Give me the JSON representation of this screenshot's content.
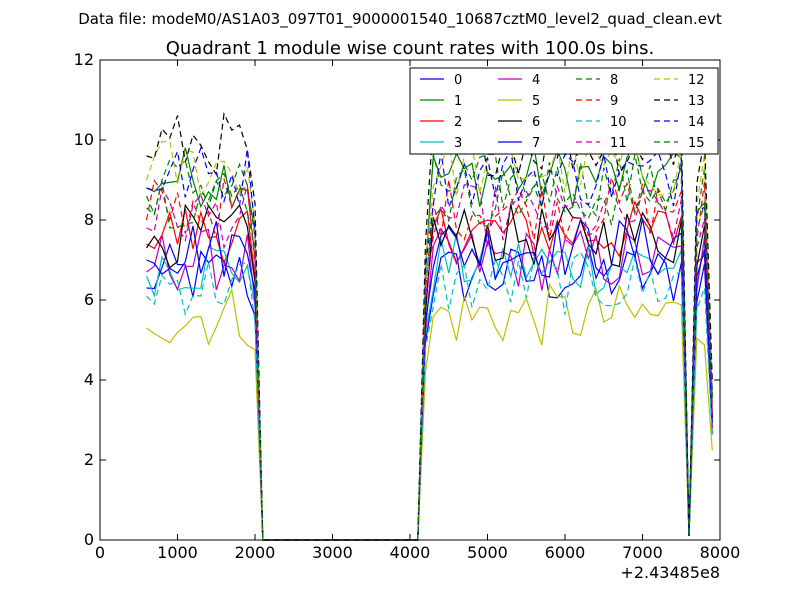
{
  "chart_data": {
    "type": "line",
    "suptitle": "Data file: modeM0/AS1A03_097T01_9000001540_10687cztM0_level2_quad_clean.evt",
    "title": "Quadrant 1 module wise count rates with 100.0s bins.",
    "xlabel": "",
    "ylabel": "",
    "x_offset_label": "+2.43485e8",
    "xlim": [
      0,
      8000
    ],
    "ylim": [
      0,
      12
    ],
    "x_ticks": [
      "0",
      "1000",
      "2000",
      "3000",
      "4000",
      "5000",
      "6000",
      "7000",
      "8000"
    ],
    "y_ticks": [
      "0",
      "2",
      "4",
      "6",
      "8",
      "10",
      "12"
    ],
    "legend_position": "top-right",
    "legend_columns": 4,
    "series": [
      {
        "name": "0",
        "color": "#0000ff",
        "dash": "solid",
        "level": 6.6
      },
      {
        "name": "1",
        "color": "#008000",
        "dash": "solid",
        "level": 9.1
      },
      {
        "name": "2",
        "color": "#ff0000",
        "dash": "solid",
        "level": 7.7
      },
      {
        "name": "3",
        "color": "#00bfbf",
        "dash": "solid",
        "level": 6.9
      },
      {
        "name": "4",
        "color": "#bf00bf",
        "dash": "solid",
        "level": 7.0
      },
      {
        "name": "5",
        "color": "#bfbf00",
        "dash": "solid",
        "level": 5.6
      },
      {
        "name": "6",
        "color": "#000000",
        "dash": "solid",
        "level": 7.6
      },
      {
        "name": "7",
        "color": "#0000ff",
        "dash": "solid",
        "level": 7.3
      },
      {
        "name": "8",
        "color": "#008000",
        "dash": "dashed",
        "level": 8.9
      },
      {
        "name": "9",
        "color": "#ff0000",
        "dash": "dashed",
        "level": 8.3
      },
      {
        "name": "10",
        "color": "#00bfbf",
        "dash": "dashed",
        "level": 6.4
      },
      {
        "name": "11",
        "color": "#bf00bf",
        "dash": "dashed",
        "level": 8.1
      },
      {
        "name": "12",
        "color": "#bfbf00",
        "dash": "dashed",
        "level": 9.3
      },
      {
        "name": "13",
        "color": "#000000",
        "dash": "dashed",
        "level": 9.9
      },
      {
        "name": "14",
        "color": "#0000ff",
        "dash": "dashed",
        "level": 9.1
      },
      {
        "name": "15",
        "color": "#008000",
        "dash": "dashed",
        "level": 8.6
      }
    ],
    "x_values": [
      600,
      700,
      800,
      900,
      1000,
      1100,
      1200,
      1300,
      1400,
      1500,
      1600,
      1700,
      1800,
      1900,
      2000,
      2100,
      4100,
      4200,
      4300,
      4400,
      4500,
      4600,
      4700,
      4800,
      4900,
      5000,
      5100,
      5200,
      5300,
      5400,
      5500,
      5600,
      5700,
      5800,
      5900,
      6000,
      6100,
      6200,
      6300,
      6400,
      6500,
      6600,
      6700,
      6800,
      6900,
      7000,
      7100,
      7200,
      7300,
      7400,
      7500,
      7600,
      7700,
      7800,
      7900
    ],
    "gap_x": [
      2100,
      4100
    ],
    "zero_segment_y": 0
  }
}
